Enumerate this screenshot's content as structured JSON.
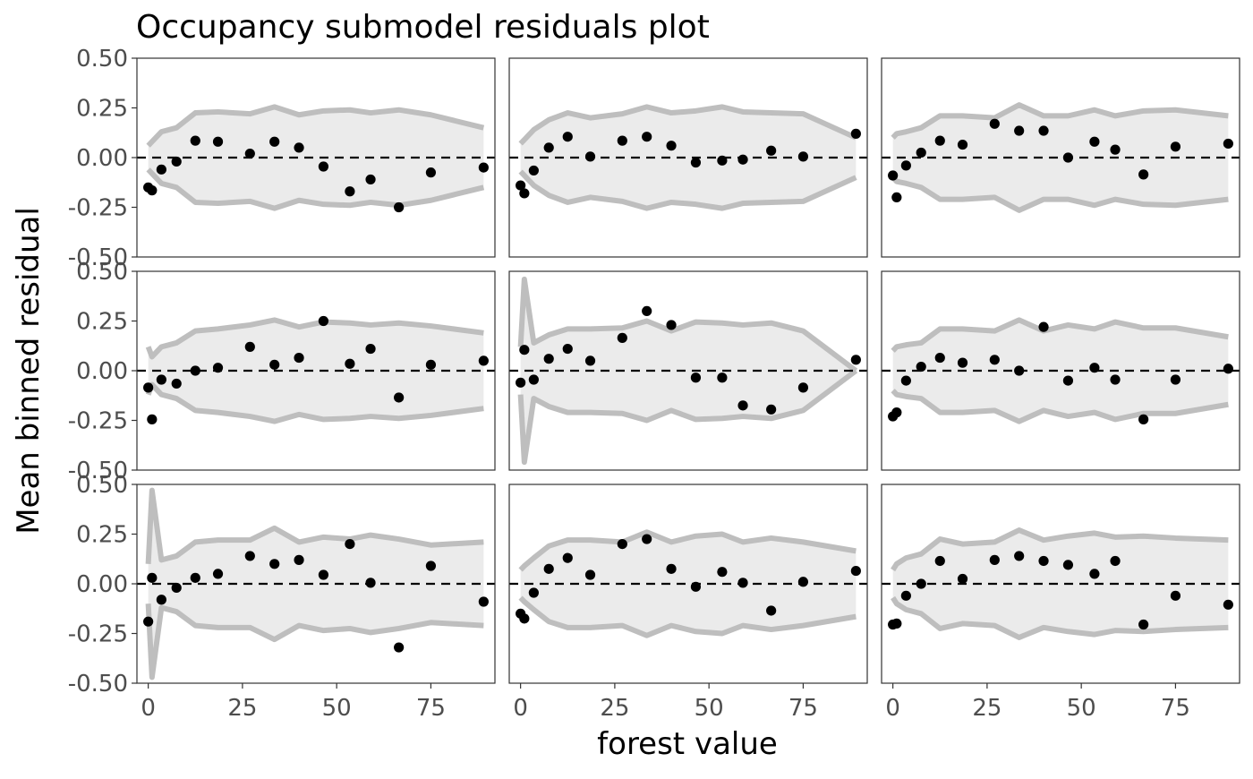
{
  "chart_data": {
    "type": "scatter",
    "title": "Occupancy submodel residuals plot",
    "xlabel": "forest value",
    "ylabel": "Mean binned residual",
    "xlim": [
      -3,
      92
    ],
    "ylim": [
      -0.5,
      0.5
    ],
    "xticks": [
      0,
      25,
      50,
      75
    ],
    "xtick_labels": [
      "0",
      "25",
      "50",
      "75"
    ],
    "yticks": [
      -0.5,
      -0.25,
      0,
      0.25,
      0.5
    ],
    "ytick_labels": [
      "-0.50",
      "-0.25",
      "0.00",
      "0.25",
      "0.50"
    ],
    "layout": {
      "rows": 3,
      "cols": 3
    },
    "grid": false,
    "legend": "none",
    "colors": {
      "points": "#000000",
      "band_fill": "#ebebeb",
      "band_line": "#bebebe",
      "reference_line": "#000000"
    },
    "panels": [
      {
        "points": [
          [
            0,
            -0.15
          ],
          [
            1,
            -0.165
          ],
          [
            3.5,
            -0.06
          ],
          [
            7.5,
            -0.02
          ],
          [
            12.5,
            0.085
          ],
          [
            18.5,
            0.08
          ],
          [
            27,
            0.02
          ],
          [
            33.5,
            0.08
          ],
          [
            40,
            0.05
          ],
          [
            46.5,
            -0.045
          ],
          [
            53.5,
            -0.17
          ],
          [
            59,
            -0.11
          ],
          [
            66.5,
            -0.25
          ],
          [
            75,
            -0.075
          ],
          [
            89,
            -0.05
          ]
        ],
        "band_x": [
          0,
          1,
          3.5,
          7.5,
          12.5,
          18.5,
          27,
          33.5,
          40,
          46.5,
          53.5,
          59,
          66.5,
          75,
          89
        ],
        "band_upper": [
          0.06,
          0.08,
          0.13,
          0.15,
          0.225,
          0.23,
          0.22,
          0.255,
          0.215,
          0.235,
          0.24,
          0.225,
          0.24,
          0.215,
          0.15
        ]
      },
      {
        "points": [
          [
            0,
            -0.14
          ],
          [
            1,
            -0.18
          ],
          [
            3.5,
            -0.065
          ],
          [
            7.5,
            0.05
          ],
          [
            12.5,
            0.105
          ],
          [
            18.5,
            0.005
          ],
          [
            27,
            0.085
          ],
          [
            33.5,
            0.105
          ],
          [
            40,
            0.06
          ],
          [
            46.5,
            -0.025
          ],
          [
            53.5,
            -0.015
          ],
          [
            59,
            -0.01
          ],
          [
            66.5,
            0.035
          ],
          [
            75,
            0.005
          ],
          [
            89,
            0.12
          ]
        ],
        "band_x": [
          0,
          1,
          3.5,
          7.5,
          12.5,
          18.5,
          27,
          33.5,
          40,
          46.5,
          53.5,
          59,
          66.5,
          75,
          89
        ],
        "band_upper": [
          0.07,
          0.09,
          0.14,
          0.19,
          0.225,
          0.2,
          0.22,
          0.255,
          0.225,
          0.235,
          0.255,
          0.23,
          0.225,
          0.22,
          0.1
        ]
      },
      {
        "points": [
          [
            0,
            -0.09
          ],
          [
            1,
            -0.2
          ],
          [
            3.5,
            -0.04
          ],
          [
            7.5,
            0.025
          ],
          [
            12.5,
            0.085
          ],
          [
            18.5,
            0.065
          ],
          [
            27,
            0.17
          ],
          [
            33.5,
            0.135
          ],
          [
            40,
            0.135
          ],
          [
            46.5,
            0
          ],
          [
            53.5,
            0.08
          ],
          [
            59,
            0.04
          ],
          [
            66.5,
            -0.085
          ],
          [
            75,
            0.055
          ],
          [
            89,
            0.07
          ]
        ],
        "band_x": [
          0,
          1,
          3.5,
          7.5,
          12.5,
          18.5,
          27,
          33.5,
          40,
          46.5,
          53.5,
          59,
          66.5,
          75,
          89
        ],
        "band_upper": [
          0.1,
          0.12,
          0.13,
          0.15,
          0.21,
          0.21,
          0.2,
          0.265,
          0.21,
          0.21,
          0.24,
          0.21,
          0.235,
          0.24,
          0.21
        ]
      },
      {
        "points": [
          [
            0,
            -0.085
          ],
          [
            1,
            -0.245
          ],
          [
            3.5,
            -0.045
          ],
          [
            7.5,
            -0.065
          ],
          [
            12.5,
            0
          ],
          [
            18.5,
            0.015
          ],
          [
            27,
            0.12
          ],
          [
            33.5,
            0.03
          ],
          [
            40,
            0.065
          ],
          [
            46.5,
            0.25
          ],
          [
            53.5,
            0.035
          ],
          [
            59,
            0.11
          ],
          [
            66.5,
            -0.135
          ],
          [
            75,
            0.03
          ],
          [
            89,
            0.05
          ]
        ],
        "band_x": [
          0,
          1,
          3.5,
          7.5,
          12.5,
          18.5,
          27,
          33.5,
          40,
          46.5,
          53.5,
          59,
          66.5,
          75,
          89
        ],
        "band_upper": [
          0.12,
          0.07,
          0.12,
          0.14,
          0.2,
          0.21,
          0.23,
          0.255,
          0.22,
          0.245,
          0.24,
          0.23,
          0.24,
          0.225,
          0.19
        ]
      },
      {
        "points": [
          [
            0,
            -0.06
          ],
          [
            1,
            0.105
          ],
          [
            3.5,
            -0.045
          ],
          [
            7.5,
            0.06
          ],
          [
            12.5,
            0.11
          ],
          [
            18.5,
            0.05
          ],
          [
            27,
            0.165
          ],
          [
            33.5,
            0.3
          ],
          [
            40,
            0.23
          ],
          [
            46.5,
            -0.035
          ],
          [
            53.5,
            -0.035
          ],
          [
            59,
            -0.175
          ],
          [
            66.5,
            -0.195
          ],
          [
            75,
            -0.085
          ],
          [
            89,
            0.055
          ]
        ],
        "band_x": [
          0,
          1,
          3.5,
          7.5,
          12.5,
          18.5,
          27,
          33.5,
          40,
          46.5,
          53.5,
          59,
          66.5,
          75,
          89
        ],
        "band_upper": [
          0.12,
          0.46,
          0.14,
          0.18,
          0.21,
          0.21,
          0.215,
          0.25,
          0.2,
          0.245,
          0.24,
          0.23,
          0.24,
          0.2,
          0
        ]
      },
      {
        "points": [
          [
            0,
            -0.23
          ],
          [
            1,
            -0.21
          ],
          [
            3.5,
            -0.05
          ],
          [
            7.5,
            0.02
          ],
          [
            12.5,
            0.065
          ],
          [
            18.5,
            0.04
          ],
          [
            27,
            0.055
          ],
          [
            33.5,
            0
          ],
          [
            40,
            0.22
          ],
          [
            46.5,
            -0.05
          ],
          [
            53.5,
            0.015
          ],
          [
            59,
            -0.045
          ],
          [
            66.5,
            -0.245
          ],
          [
            75,
            -0.045
          ],
          [
            89,
            0.01
          ]
        ],
        "band_x": [
          0,
          1,
          3.5,
          7.5,
          12.5,
          18.5,
          27,
          33.5,
          40,
          46.5,
          53.5,
          59,
          66.5,
          75,
          89
        ],
        "band_upper": [
          0.1,
          0.12,
          0.13,
          0.14,
          0.21,
          0.21,
          0.2,
          0.255,
          0.2,
          0.23,
          0.21,
          0.245,
          0.215,
          0.215,
          0.17
        ]
      },
      {
        "points": [
          [
            0,
            -0.19
          ],
          [
            1,
            0.03
          ],
          [
            3.5,
            -0.08
          ],
          [
            7.5,
            -0.02
          ],
          [
            12.5,
            0.03
          ],
          [
            18.5,
            0.05
          ],
          [
            27,
            0.14
          ],
          [
            33.5,
            0.1
          ],
          [
            40,
            0.12
          ],
          [
            46.5,
            0.045
          ],
          [
            53.5,
            0.2
          ],
          [
            59,
            0.005
          ],
          [
            66.5,
            -0.32
          ],
          [
            75,
            0.09
          ],
          [
            89,
            -0.09
          ]
        ],
        "band_x": [
          0,
          1,
          3.5,
          7.5,
          12.5,
          18.5,
          27,
          33.5,
          40,
          46.5,
          53.5,
          59,
          66.5,
          75,
          89
        ],
        "band_upper": [
          0.1,
          0.47,
          0.12,
          0.14,
          0.21,
          0.22,
          0.22,
          0.28,
          0.21,
          0.235,
          0.225,
          0.245,
          0.225,
          0.195,
          0.21
        ]
      },
      {
        "points": [
          [
            0,
            -0.15
          ],
          [
            1,
            -0.175
          ],
          [
            3.5,
            -0.045
          ],
          [
            7.5,
            0.075
          ],
          [
            12.5,
            0.13
          ],
          [
            18.5,
            0.045
          ],
          [
            27,
            0.2
          ],
          [
            33.5,
            0.225
          ],
          [
            40,
            0.075
          ],
          [
            46.5,
            -0.015
          ],
          [
            53.5,
            0.06
          ],
          [
            59,
            0.005
          ],
          [
            66.5,
            -0.135
          ],
          [
            75,
            0.01
          ],
          [
            89,
            0.065
          ]
        ],
        "band_x": [
          0,
          1,
          3.5,
          7.5,
          12.5,
          18.5,
          27,
          33.5,
          40,
          46.5,
          53.5,
          59,
          66.5,
          75,
          89
        ],
        "band_upper": [
          0.07,
          0.09,
          0.13,
          0.19,
          0.22,
          0.22,
          0.21,
          0.26,
          0.21,
          0.24,
          0.25,
          0.21,
          0.23,
          0.21,
          0.165
        ]
      },
      {
        "points": [
          [
            0,
            -0.205
          ],
          [
            1,
            -0.2
          ],
          [
            3.5,
            -0.06
          ],
          [
            7.5,
            0
          ],
          [
            12.5,
            0.115
          ],
          [
            18.5,
            0.025
          ],
          [
            27,
            0.12
          ],
          [
            33.5,
            0.14
          ],
          [
            40,
            0.115
          ],
          [
            46.5,
            0.095
          ],
          [
            53.5,
            0.05
          ],
          [
            59,
            0.115
          ],
          [
            66.5,
            -0.205
          ],
          [
            75,
            -0.06
          ],
          [
            89,
            -0.105
          ]
        ],
        "band_x": [
          0,
          1,
          3.5,
          7.5,
          12.5,
          18.5,
          27,
          33.5,
          40,
          46.5,
          53.5,
          59,
          66.5,
          75,
          89
        ],
        "band_upper": [
          0.07,
          0.1,
          0.13,
          0.15,
          0.225,
          0.2,
          0.21,
          0.27,
          0.22,
          0.24,
          0.255,
          0.235,
          0.24,
          0.23,
          0.22
        ]
      }
    ]
  }
}
